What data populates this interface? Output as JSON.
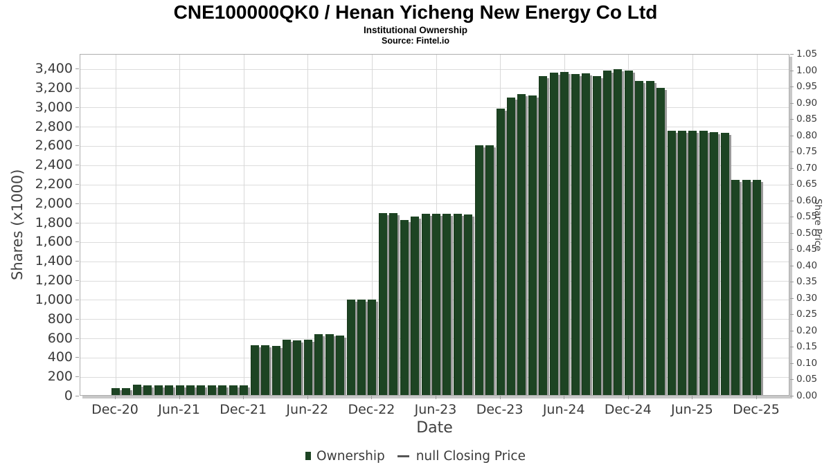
{
  "header": {
    "title": "CNE100000QK0 / Henan Yicheng New Energy Co Ltd",
    "subtitle": "Institutional Ownership",
    "source": "Source: Fintel.io"
  },
  "chart_data": {
    "type": "bar",
    "title": "CNE100000QK0 / Henan Yicheng New Energy Co Ltd",
    "subtitle": "Institutional Ownership",
    "source": "Source: Fintel.io",
    "xlabel": "Date",
    "ylabel_left": "Shares (x1000)",
    "ylabel_right": "Share Price",
    "grid": true,
    "legend_position": "bottom-center",
    "bar_color": "#1d4423",
    "bar_shadow_color": "#9a9a9a",
    "categories": [
      "Dec-20",
      "Jan-21",
      "Feb-21",
      "Mar-21",
      "Apr-21",
      "May-21",
      "Jun-21",
      "Jul-21",
      "Aug-21",
      "Sep-21",
      "Oct-21",
      "Nov-21",
      "Dec-21",
      "Jan-22",
      "Feb-22",
      "Mar-22",
      "Apr-22",
      "May-22",
      "Jun-22",
      "Jul-22",
      "Aug-22",
      "Sep-22",
      "Oct-22",
      "Nov-22",
      "Dec-22",
      "Jan-23",
      "Feb-23",
      "Mar-23",
      "Apr-23",
      "May-23",
      "Jun-23",
      "Jul-23",
      "Aug-23",
      "Sep-23",
      "Oct-23",
      "Nov-23",
      "Dec-23",
      "Jan-24",
      "Feb-24",
      "Mar-24",
      "Apr-24",
      "May-24",
      "Jun-24",
      "Jul-24",
      "Aug-24",
      "Sep-24",
      "Oct-24",
      "Nov-24",
      "Dec-24",
      "Jan-25",
      "Feb-25",
      "Mar-25",
      "Apr-25",
      "May-25",
      "Jun-25",
      "Jul-25",
      "Aug-25",
      "Sep-25",
      "Oct-25",
      "Nov-25",
      "Dec-25"
    ],
    "series": [
      {
        "name": "Ownership",
        "values": [
          70,
          70,
          105,
          102,
          100,
          100,
          100,
          100,
          100,
          100,
          100,
          100,
          100,
          515,
          515,
          510,
          575,
          570,
          572,
          630,
          630,
          622,
          995,
          995,
          995,
          1890,
          1890,
          1820,
          1858,
          1885,
          1882,
          1882,
          1882,
          1876,
          2595,
          2595,
          2975,
          3090,
          3125,
          3110,
          3315,
          3350,
          3360,
          3335,
          3340,
          3315,
          3370,
          3390,
          3375,
          3265,
          3265,
          3195,
          2745,
          2748,
          2745,
          2745,
          2735,
          2725,
          2235,
          2238,
          2235
        ]
      },
      {
        "name": "null Closing Price",
        "values": []
      }
    ],
    "y_left": {
      "min": 0,
      "plot_max": 3552,
      "tick_min": 0,
      "tick_max": 3400,
      "tick_step": 200
    },
    "y_right": {
      "min": 0,
      "tick_min": 0.0,
      "tick_max": 1.05,
      "tick_step": 0.05
    },
    "x_tick_labels": [
      "Dec-20",
      "Jun-21",
      "Dec-21",
      "Jun-22",
      "Dec-22",
      "Jun-23",
      "Dec-23",
      "Jun-24",
      "Dec-24",
      "Jun-25",
      "Dec-25"
    ],
    "x_tick_indices": [
      0,
      6,
      12,
      18,
      24,
      30,
      36,
      42,
      48,
      54,
      60
    ],
    "legend": [
      {
        "label": "Ownership",
        "marker": "square",
        "color": "#1d4423"
      },
      {
        "label": "null Closing Price",
        "marker": "line",
        "color": "#555555"
      }
    ]
  },
  "colors": {
    "grid": "#dcdcdc",
    "frame": "#adadad",
    "frame_shadow": "#c8c8c8",
    "tick_text": "#3a3a3a",
    "axis_label_text": "#424242",
    "title_text": "#000000"
  }
}
